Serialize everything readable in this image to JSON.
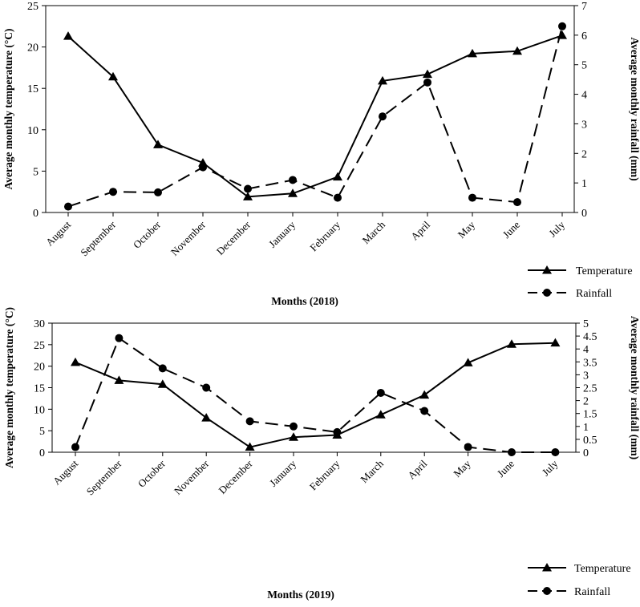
{
  "chart_data": [
    {
      "type": "line",
      "title": "",
      "xlabel": "Months (2018)",
      "ylabel": "Average monthly temperature (°C)",
      "y2label": "Average monthly rainfall (mm)",
      "categories": [
        "August",
        "September",
        "October",
        "November",
        "December",
        "January",
        "February",
        "March",
        "April",
        "May",
        "June",
        "July"
      ],
      "ylim": [
        0,
        25
      ],
      "yticks": [
        "0",
        "5",
        "10",
        "15",
        "20",
        "25"
      ],
      "y2lim": [
        0,
        7
      ],
      "y2ticks": [
        "0",
        "1",
        "2",
        "3",
        "4",
        "5",
        "6",
        "7"
      ],
      "legend_position": "bottom-right",
      "series": [
        {
          "name": "Temperature",
          "axis": "left",
          "marker": "triangle",
          "style": "solid",
          "values": [
            21.3,
            16.4,
            8.2,
            6.0,
            1.9,
            2.3,
            4.3,
            15.9,
            16.7,
            19.2,
            19.5,
            21.4
          ]
        },
        {
          "name": "Rainfall",
          "axis": "right",
          "marker": "circle",
          "style": "dashed",
          "values": [
            0.2,
            0.7,
            0.68,
            1.53,
            0.8,
            1.1,
            0.5,
            3.25,
            4.4,
            0.5,
            0.35,
            6.3
          ]
        }
      ]
    },
    {
      "type": "line",
      "title": "",
      "xlabel": "Months (2019)",
      "ylabel": "Average monthly temperature (°C)",
      "y2label": "Average monthly rainfall (mm)",
      "categories": [
        "August",
        "September",
        "October",
        "November",
        "December",
        "January",
        "February",
        "March",
        "April",
        "May",
        "June",
        "July"
      ],
      "ylim": [
        0,
        30
      ],
      "yticks": [
        "0",
        "5",
        "10",
        "15",
        "20",
        "25",
        "30"
      ],
      "y2lim": [
        0,
        5
      ],
      "y2ticks": [
        "0",
        "0.5",
        "1",
        "1.5",
        "2",
        "2.5",
        "3",
        "3.5",
        "4",
        "4.5",
        "5"
      ],
      "legend_position": "bottom-right",
      "series": [
        {
          "name": "Temperature",
          "axis": "left",
          "marker": "triangle",
          "style": "solid",
          "values": [
            20.9,
            16.7,
            15.8,
            8.0,
            1.2,
            3.5,
            4.0,
            8.7,
            13.3,
            20.8,
            25.1,
            25.4
          ]
        },
        {
          "name": "Rainfall",
          "axis": "right",
          "marker": "circle",
          "style": "dashed",
          "values": [
            0.2,
            4.42,
            3.25,
            2.5,
            1.2,
            1.0,
            0.78,
            2.3,
            1.6,
            0.2,
            0.0,
            0.0
          ]
        }
      ]
    }
  ]
}
